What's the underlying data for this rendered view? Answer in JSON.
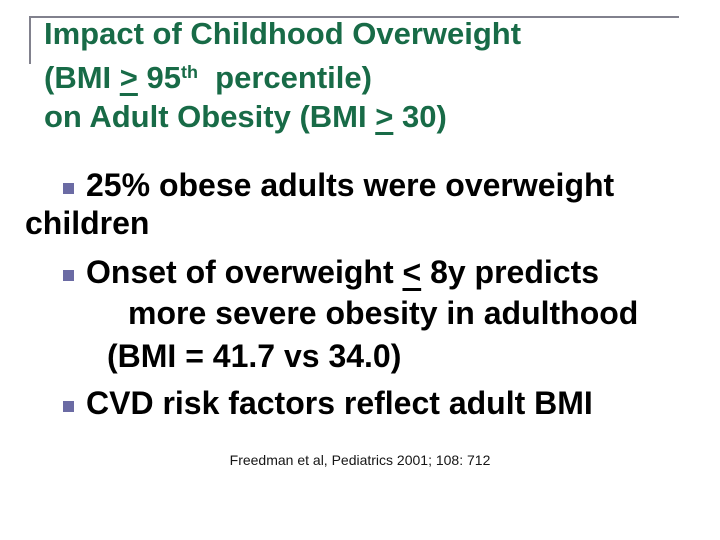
{
  "slide": {
    "title": {
      "line1": "Impact of Childhood Overweight",
      "line2_pre": "(BMI ",
      "line2_geq": ">",
      "line2_num": " 95",
      "line2_sup": "th",
      "line2_post": "  percentile)",
      "line3_pre": "on Adult Obesity (BMI ",
      "line3_geq": ">",
      "line3_post": " 30)"
    },
    "bullets": {
      "b1": "25% obese adults were overweight children",
      "b2_pre": "Onset of overweight ",
      "b2_leq": "<",
      "b2_post": " 8y predicts",
      "b2_cont1": "more severe obesity in adulthood",
      "b2_cont2": "(BMI = 41.7 vs 34.0)",
      "b3": "CVD risk factors reflect adult BMI"
    },
    "citation": "Freedman et al, Pediatrics 2001; 108: 712",
    "colors": {
      "title_green": "#186b47",
      "bullet_square_blue": "#6b6ba4",
      "rule_gray": "#81818d",
      "body_text": "#000000"
    }
  }
}
